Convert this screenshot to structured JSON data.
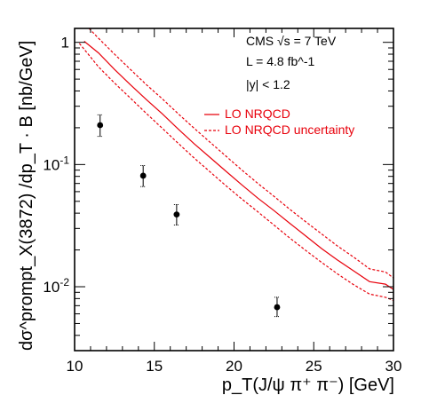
{
  "chart_data": {
    "type": "scatter",
    "title": "",
    "xlabel": "p_T(J/ψ π⁺ π⁻) [GeV]",
    "ylabel": "dσ^prompt_X(3872) /dp_T · B [nb/GeV]",
    "xlim": [
      10,
      30
    ],
    "ylim": [
      0.003,
      1.3
    ],
    "log_y": true,
    "grid": false,
    "x_ticks": [
      10,
      15,
      20,
      25,
      30
    ],
    "y_ticks": [
      {
        "value": 1,
        "label": "1"
      },
      {
        "value": 0.1,
        "label": "10^-1"
      },
      {
        "value": 0.01,
        "label": "10^-2"
      }
    ],
    "annotations": [
      "CMS  √s = 7 TeV",
      "L = 4.8 fb^-1",
      "|y| < 1.2"
    ],
    "legend": {
      "position": "top-right",
      "entries": [
        {
          "label": "LO NRQCD",
          "style": "solid",
          "color": "#e8000b"
        },
        {
          "label": "LO NRQCD uncertainty",
          "style": "dashed",
          "color": "#e8000b"
        }
      ]
    },
    "series": [
      {
        "type": "scatter",
        "color": "#000000",
        "points": [
          {
            "x": 11.6,
            "y": 0.21,
            "y_low": 0.17,
            "y_high": 0.255
          },
          {
            "x": 14.3,
            "y": 0.081,
            "y_low": 0.066,
            "y_high": 0.098
          },
          {
            "x": 16.4,
            "y": 0.039,
            "y_low": 0.032,
            "y_high": 0.047
          },
          {
            "x": 22.7,
            "y": 0.0068,
            "y_low": 0.0057,
            "y_high": 0.0082
          }
        ]
      },
      {
        "type": "line",
        "style": "solid",
        "color": "#e8000b",
        "x": [
          10.6,
          11.5,
          12.5,
          13.5,
          14.5,
          15.5,
          16.5,
          17.5,
          18.5,
          19.5,
          20.5,
          21.5,
          22.5,
          23.5,
          24.5,
          25.5,
          26.5,
          27.5,
          28.5,
          29.5,
          30
        ],
        "y": [
          1.02,
          0.82,
          0.6,
          0.45,
          0.34,
          0.26,
          0.195,
          0.148,
          0.114,
          0.088,
          0.068,
          0.053,
          0.042,
          0.033,
          0.026,
          0.0205,
          0.0165,
          0.0135,
          0.011,
          0.0105,
          0.0095
        ]
      },
      {
        "type": "line",
        "style": "dashed",
        "color": "#e8000b",
        "x": [
          10.9,
          11.5,
          12.5,
          13.5,
          14.5,
          15.5,
          16.5,
          17.5,
          18.5,
          19.5,
          20.5,
          21.5,
          22.5,
          23.5,
          24.5,
          25.5,
          26.5,
          27.5,
          28.5,
          29.5,
          30
        ],
        "y": [
          1.3,
          1.08,
          0.8,
          0.6,
          0.45,
          0.345,
          0.26,
          0.198,
          0.152,
          0.117,
          0.09,
          0.07,
          0.055,
          0.043,
          0.034,
          0.027,
          0.0215,
          0.0175,
          0.014,
          0.0132,
          0.0118
        ]
      },
      {
        "type": "line",
        "style": "dashed",
        "color": "#e8000b",
        "x": [
          10.3,
          11.5,
          12.5,
          13.5,
          14.5,
          15.5,
          16.5,
          17.5,
          18.5,
          19.5,
          20.5,
          21.5,
          22.5,
          23.5,
          24.5,
          25.5,
          26.5,
          27.5,
          28.5,
          29.5,
          30
        ],
        "y": [
          0.98,
          0.63,
          0.465,
          0.35,
          0.262,
          0.198,
          0.149,
          0.113,
          0.087,
          0.067,
          0.052,
          0.041,
          0.032,
          0.025,
          0.0198,
          0.0158,
          0.0127,
          0.0104,
          0.0087,
          0.0082,
          0.0077
        ]
      }
    ]
  }
}
